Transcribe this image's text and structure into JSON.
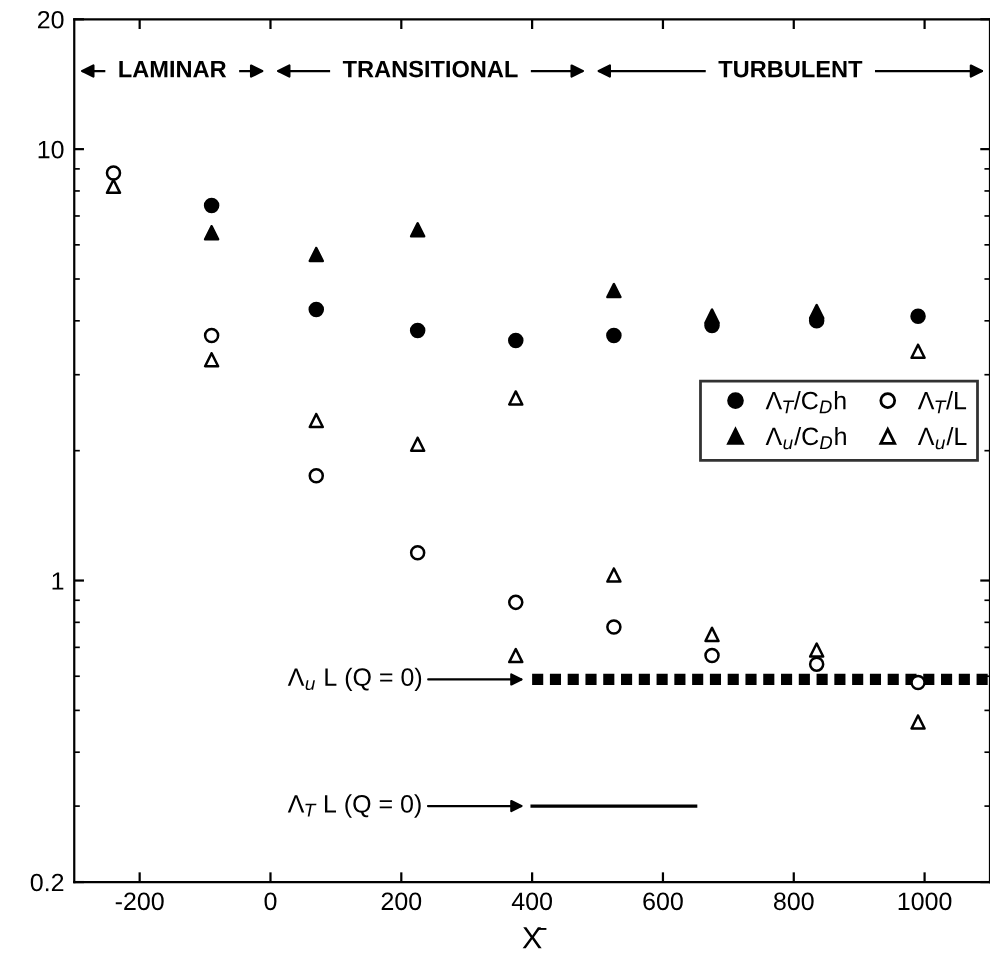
{
  "chart_data": {
    "type": "scatter",
    "xlabel": "X̄",
    "log": "y",
    "xlim": [
      -300,
      1100
    ],
    "xticks": [
      -200,
      0,
      200,
      400,
      600,
      800,
      1000
    ],
    "ylim": [
      0.2,
      20
    ],
    "yticks": [
      0.2,
      1,
      10,
      20
    ],
    "grid": false,
    "legend": "right",
    "series": [
      {
        "name": "Λ$_{T}$/C$_{D}$h",
        "color": "#000000",
        "marker": "circle",
        "x": [
          -90,
          70,
          225,
          375,
          525,
          675,
          835,
          990
        ],
        "values": [
          7.4,
          4.25,
          3.8,
          3.6,
          3.7,
          3.9,
          4.0,
          4.1
        ]
      },
      {
        "name": "Λ$_{u}$/C$_{D}$h",
        "color": "#000000",
        "marker": "triangle",
        "x": [
          -90,
          70,
          225,
          525,
          675,
          835
        ],
        "values": [
          6.4,
          5.7,
          6.5,
          4.7,
          4.1,
          4.2
        ]
      },
      {
        "name": "Λ$_{T}$/L",
        "color": "#000000",
        "marker": "circle",
        "x": [
          -240,
          -90,
          70,
          225,
          375,
          525,
          675,
          835,
          990
        ],
        "values": [
          8.8,
          3.7,
          1.75,
          1.16,
          0.89,
          0.78,
          0.67,
          0.64,
          0.58
        ]
      },
      {
        "name": "Λ$_{u}$/L",
        "color": "#000000",
        "marker": "triangle",
        "x": [
          -240,
          -90,
          70,
          225,
          375,
          375,
          525,
          675,
          835,
          990,
          990
        ],
        "values": [
          8.2,
          3.25,
          2.35,
          2.07,
          2.65,
          0.67,
          1.03,
          0.75,
          0.69,
          3.4,
          0.47
        ]
      },
      {
        "type": "line",
        "color": "#000000",
        "line_style": "dashed",
        "x": [
          400,
          1100
        ],
        "values": [
          0.59,
          0.59
        ]
      },
      {
        "type": "line",
        "color": "#000000",
        "line_style": "solid",
        "x": [
          400,
          650
        ],
        "values": [
          0.3,
          0.3
        ]
      }
    ],
    "annotations": [
      "LAMINAR",
      "TRANSITIONAL",
      "TURBULENT",
      "Λ$_{u}$ L (Q = 0)",
      "Λ$_{T}$ L (Q = 0)"
    ]
  }
}
